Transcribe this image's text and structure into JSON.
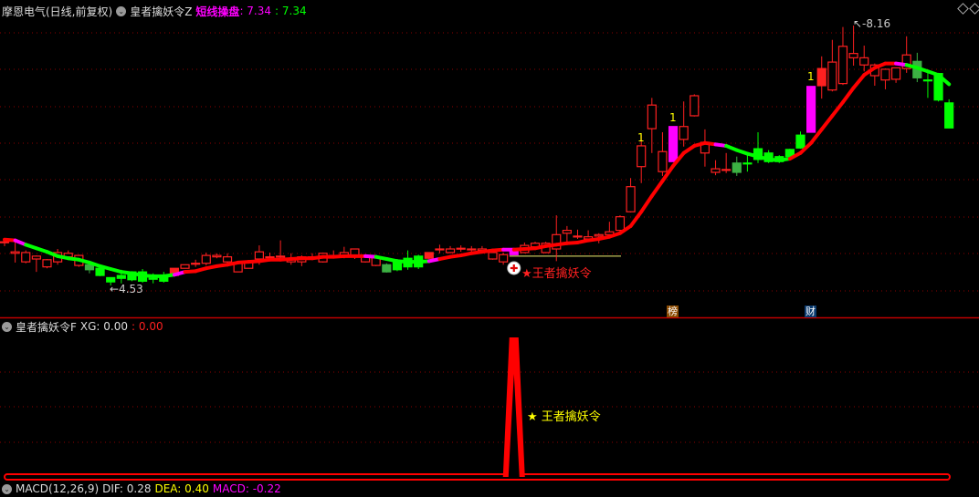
{
  "header": {
    "stock": "摩恩电气(日线,前复权)",
    "indicator": "皇者擒妖令Z",
    "line_label": "短线操盘",
    "line_value": ": 7.34",
    "line_value2": ": 7.34"
  },
  "sub_panel": {
    "title": "皇者擒妖令F",
    "xg_label": "XG: 0.00",
    "xg_value2": ": 0.00",
    "signal_text": "★ 王者擒妖令"
  },
  "macd_panel": {
    "title": "MACD(12,26,9)",
    "dif": "DIF: 0.28",
    "dea": "DEA: 0.40",
    "macd": "MACD: -0.22"
  },
  "annotations": {
    "high_label": "8.16",
    "low_label": "4.53",
    "signal_text": "★王者擒妖令",
    "mark_label": "1",
    "badge_bang": "榜",
    "badge_cai": "财"
  },
  "colors": {
    "up": "#ff2020",
    "down": "#00ff00",
    "down_dark": "#3cb043",
    "signal": "#ff00ff",
    "grid": "#8b0000",
    "hline": "#f0f070"
  },
  "chart_data": [
    {
      "type": "candlestick",
      "ylim": [
        4.085,
        8.517
      ],
      "high": 8.16,
      "low": 4.53,
      "hline": 4.94,
      "signal_index": 48,
      "mark_indices": [
        60,
        63,
        76
      ],
      "badge_indices": {
        "bang": 63,
        "cai": 76
      },
      "candles": [
        [
          5.14,
          5.18,
          5.08,
          5.14,
          "up"
        ],
        [
          4.98,
          5.16,
          4.85,
          5.0,
          "up"
        ],
        [
          4.86,
          5.02,
          4.84,
          4.99,
          "up"
        ],
        [
          4.9,
          4.95,
          4.72,
          4.94,
          "up"
        ],
        [
          4.79,
          4.9,
          4.77,
          4.89,
          "up"
        ],
        [
          4.86,
          5.04,
          4.82,
          4.99,
          "up"
        ],
        [
          4.93,
          5.02,
          4.89,
          4.98,
          "up"
        ],
        [
          4.81,
          4.96,
          4.79,
          4.95,
          "up"
        ],
        [
          4.82,
          4.82,
          4.7,
          4.75,
          "downdk"
        ],
        [
          4.77,
          4.8,
          4.66,
          4.67,
          "down"
        ],
        [
          4.64,
          4.64,
          4.53,
          4.58,
          "down"
        ],
        [
          4.67,
          4.75,
          4.56,
          4.63,
          "down"
        ],
        [
          4.72,
          4.73,
          4.59,
          4.61,
          "down"
        ],
        [
          4.72,
          4.76,
          4.57,
          4.59,
          "down"
        ],
        [
          4.63,
          4.7,
          4.56,
          4.63,
          "down"
        ],
        [
          4.67,
          4.72,
          4.57,
          4.59,
          "down"
        ],
        [
          4.67,
          4.77,
          4.67,
          4.77,
          "upfill"
        ],
        [
          4.77,
          4.82,
          4.77,
          4.82,
          "up"
        ],
        [
          4.84,
          4.89,
          4.79,
          4.84,
          "up"
        ],
        [
          4.84,
          4.99,
          4.81,
          4.95,
          "up"
        ],
        [
          4.93,
          4.98,
          4.91,
          4.95,
          "up"
        ],
        [
          4.86,
          4.98,
          4.82,
          4.93,
          "up"
        ],
        [
          4.72,
          4.85,
          4.72,
          4.85,
          "up"
        ],
        [
          4.77,
          4.86,
          4.77,
          4.86,
          "up"
        ],
        [
          4.9,
          5.09,
          4.82,
          5.0,
          "up"
        ],
        [
          4.93,
          4.99,
          4.87,
          4.93,
          "up"
        ],
        [
          4.94,
          5.16,
          4.9,
          4.94,
          "up"
        ],
        [
          4.86,
          4.98,
          4.82,
          4.9,
          "up"
        ],
        [
          4.86,
          4.95,
          4.8,
          4.93,
          "up"
        ],
        [
          4.93,
          4.98,
          4.89,
          4.93,
          "up"
        ],
        [
          4.86,
          4.99,
          4.85,
          4.98,
          "up"
        ],
        [
          4.95,
          5.02,
          4.91,
          4.95,
          "up"
        ],
        [
          4.93,
          5.07,
          4.91,
          4.99,
          "up"
        ],
        [
          4.93,
          5.04,
          4.9,
          5.04,
          "up"
        ],
        [
          4.86,
          4.94,
          4.85,
          4.93,
          "up"
        ],
        [
          4.81,
          4.94,
          4.8,
          4.93,
          "up"
        ],
        [
          4.82,
          4.84,
          4.71,
          4.72,
          "downdk"
        ],
        [
          4.87,
          4.9,
          4.73,
          4.75,
          "down"
        ],
        [
          4.91,
          5.02,
          4.75,
          4.79,
          "down"
        ],
        [
          4.94,
          4.96,
          4.76,
          4.79,
          "down"
        ],
        [
          4.91,
          4.99,
          4.9,
          4.99,
          "upfill"
        ],
        [
          5.04,
          5.1,
          4.98,
          5.04,
          "up"
        ],
        [
          4.99,
          5.08,
          4.98,
          5.04,
          "up"
        ],
        [
          5.05,
          5.09,
          5.0,
          5.05,
          "up"
        ],
        [
          5.04,
          5.08,
          5.0,
          5.04,
          "up"
        ],
        [
          5.02,
          5.08,
          5.0,
          5.04,
          "up"
        ],
        [
          4.9,
          5.0,
          4.89,
          4.99,
          "up"
        ],
        [
          4.86,
          4.99,
          4.82,
          4.96,
          "up"
        ],
        [
          4.96,
          5.04,
          4.96,
          5.04,
          "sig"
        ],
        [
          4.99,
          5.13,
          4.98,
          5.09,
          "up"
        ],
        [
          5.07,
          5.14,
          5.04,
          5.12,
          "up"
        ],
        [
          4.99,
          5.14,
          4.98,
          5.12,
          "up"
        ],
        [
          5.04,
          5.51,
          4.87,
          5.24,
          "up"
        ],
        [
          5.26,
          5.36,
          5.14,
          5.3,
          "up"
        ],
        [
          5.22,
          5.31,
          5.18,
          5.22,
          "up"
        ],
        [
          5.18,
          5.3,
          5.17,
          5.21,
          "up"
        ],
        [
          5.22,
          5.26,
          5.12,
          5.24,
          "up"
        ],
        [
          5.24,
          5.42,
          5.23,
          5.28,
          "up"
        ],
        [
          5.3,
          5.51,
          5.28,
          5.49,
          "up"
        ],
        [
          5.56,
          6.03,
          5.55,
          5.91,
          "up"
        ],
        [
          6.19,
          6.63,
          5.96,
          6.48,
          "up"
        ],
        [
          6.72,
          7.15,
          6.38,
          7.05,
          "up"
        ],
        [
          6.12,
          6.67,
          6.06,
          6.4,
          "up"
        ],
        [
          6.26,
          6.75,
          6.26,
          6.75,
          "sig"
        ],
        [
          6.57,
          7.1,
          6.47,
          6.75,
          "up"
        ],
        [
          6.9,
          7.2,
          6.89,
          7.18,
          "up"
        ],
        [
          6.38,
          6.71,
          6.19,
          6.53,
          "up"
        ],
        [
          6.11,
          6.28,
          6.07,
          6.16,
          "up"
        ],
        [
          6.15,
          6.38,
          6.1,
          6.15,
          "up"
        ],
        [
          6.24,
          6.33,
          6.06,
          6.11,
          "downdk"
        ],
        [
          6.24,
          6.39,
          6.12,
          6.24,
          "down"
        ],
        [
          6.44,
          6.67,
          6.24,
          6.29,
          "down"
        ],
        [
          6.38,
          6.42,
          6.24,
          6.26,
          "down"
        ],
        [
          6.33,
          6.35,
          6.24,
          6.26,
          "down"
        ],
        [
          6.43,
          6.44,
          6.33,
          6.33,
          "down"
        ],
        [
          6.63,
          6.68,
          6.44,
          6.45,
          "down"
        ],
        [
          6.67,
          7.31,
          6.67,
          7.31,
          "sig"
        ],
        [
          7.32,
          7.73,
          7.14,
          7.56,
          "upfill"
        ],
        [
          7.26,
          7.96,
          7.24,
          7.65,
          "up"
        ],
        [
          7.35,
          8.14,
          7.33,
          7.87,
          "up"
        ],
        [
          7.71,
          8.16,
          7.6,
          7.77,
          "up"
        ],
        [
          7.61,
          7.88,
          7.52,
          7.71,
          "up"
        ],
        [
          7.46,
          7.63,
          7.32,
          7.61,
          "up"
        ],
        [
          7.4,
          7.56,
          7.27,
          7.55,
          "up"
        ],
        [
          7.41,
          7.57,
          7.36,
          7.57,
          "up"
        ],
        [
          7.56,
          8.01,
          7.5,
          7.75,
          "up"
        ],
        [
          7.66,
          7.78,
          7.37,
          7.43,
          "downdk"
        ],
        [
          7.4,
          7.5,
          7.15,
          7.4,
          "down"
        ],
        [
          7.49,
          7.5,
          7.1,
          7.12,
          "down"
        ],
        [
          7.08,
          7.13,
          6.73,
          6.73,
          "down"
        ]
      ],
      "ma": {
        "name": "短线操盘",
        "values": [
          5.17,
          5.16,
          5.1,
          5.05,
          5.0,
          4.94,
          4.91,
          4.89,
          4.85,
          4.8,
          4.76,
          4.72,
          4.7,
          4.67,
          4.66,
          4.66,
          4.68,
          4.72,
          4.73,
          4.77,
          4.8,
          4.82,
          4.85,
          4.86,
          4.87,
          4.89,
          4.89,
          4.9,
          4.91,
          4.91,
          4.93,
          4.93,
          4.94,
          4.94,
          4.94,
          4.93,
          4.9,
          4.87,
          4.86,
          4.86,
          4.87,
          4.9,
          4.93,
          4.95,
          4.98,
          5.0,
          5.02,
          5.03,
          5.03,
          5.04,
          5.05,
          5.08,
          5.1,
          5.12,
          5.13,
          5.16,
          5.18,
          5.21,
          5.26,
          5.36,
          5.56,
          5.78,
          5.99,
          6.2,
          6.38,
          6.48,
          6.52,
          6.5,
          6.48,
          6.42,
          6.37,
          6.33,
          6.29,
          6.28,
          6.3,
          6.38,
          6.52,
          6.71,
          6.9,
          7.09,
          7.29,
          7.47,
          7.57,
          7.63,
          7.63,
          7.61,
          7.57,
          7.52,
          7.47,
          7.34
        ],
        "segments": [
          {
            "from": 0,
            "to": 0,
            "color": "#ff0000"
          },
          {
            "from": 1,
            "to": 1,
            "color": "#ff00ff"
          },
          {
            "from": 2,
            "to": 15,
            "color": "#00ff00"
          },
          {
            "from": 16,
            "to": 16,
            "color": "#ff00ff"
          },
          {
            "from": 17,
            "to": 33,
            "color": "#ff0000"
          },
          {
            "from": 34,
            "to": 34,
            "color": "#ff00ff"
          },
          {
            "from": 35,
            "to": 39,
            "color": "#00ff00"
          },
          {
            "from": 40,
            "to": 40,
            "color": "#ff00ff"
          },
          {
            "from": 41,
            "to": 46,
            "color": "#ff0000"
          },
          {
            "from": 47,
            "to": 47,
            "color": "#ff00ff"
          },
          {
            "from": 48,
            "to": 66,
            "color": "#ff0000"
          },
          {
            "from": 67,
            "to": 67,
            "color": "#ff00ff"
          },
          {
            "from": 68,
            "to": 73,
            "color": "#00ff00"
          },
          {
            "from": 74,
            "to": 83,
            "color": "#ff0000"
          },
          {
            "from": 84,
            "to": 84,
            "color": "#ff00ff"
          },
          {
            "from": 85,
            "to": 89,
            "color": "#00ff00"
          }
        ]
      }
    },
    {
      "type": "line",
      "name": "XG",
      "ylim": [
        0,
        1
      ],
      "values": [
        0,
        0,
        0,
        0,
        0,
        0,
        0,
        0,
        0,
        0,
        0,
        0,
        0,
        0,
        0,
        0,
        0,
        0,
        0,
        0,
        0,
        0,
        0,
        0,
        0,
        0,
        0,
        0,
        0,
        0,
        0,
        0,
        0,
        0,
        0,
        0,
        0,
        0,
        0,
        0,
        0,
        0,
        0,
        0,
        0,
        0,
        0,
        0,
        1,
        0,
        0,
        0,
        0,
        0,
        0,
        0,
        0,
        0,
        0,
        0,
        0,
        0,
        0,
        0,
        0,
        0,
        0,
        0,
        0,
        0,
        0,
        0,
        0,
        0,
        0,
        0,
        0,
        0,
        0,
        0,
        0,
        0,
        0,
        0,
        0,
        0,
        0,
        0,
        0,
        0
      ]
    }
  ]
}
